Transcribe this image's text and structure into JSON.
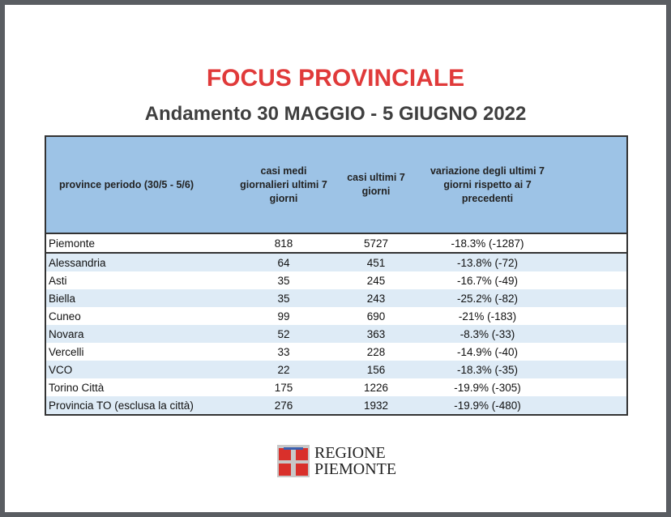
{
  "title": "FOCUS PROVINCIALE",
  "subtitle": "Andamento 30 MAGGIO - 5 GIUGNO 2022",
  "table": {
    "headers": [
      "province periodo (30/5 - 5/6)",
      "casi medi giornalieri ultimi 7 giorni",
      "casi ultimi 7 giorni",
      "variazione degli ultimi 7 giorni rispetto ai 7 precedenti"
    ],
    "rows": [
      [
        "Piemonte",
        "818",
        "5727",
        "-18.3% (-1287)"
      ],
      [
        "Alessandria",
        "64",
        "451",
        "-13.8% (-72)"
      ],
      [
        "Asti",
        "35",
        "245",
        "-16.7% (-49)"
      ],
      [
        "Biella",
        "35",
        "243",
        "-25.2% (-82)"
      ],
      [
        "Cuneo",
        "99",
        "690",
        "-21% (-183)"
      ],
      [
        "Novara",
        "52",
        "363",
        "-8.3% (-33)"
      ],
      [
        "Vercelli",
        "33",
        "228",
        "-14.9% (-40)"
      ],
      [
        "VCO",
        "22",
        "156",
        "-18.3% (-35)"
      ],
      [
        "Torino Città",
        "175",
        "1226",
        "-19.9% (-305)"
      ],
      [
        "Provincia TO (esclusa la città)",
        "276",
        "1932",
        "-19.9% (-480)"
      ]
    ]
  },
  "logo": {
    "line1": "REGIONE",
    "line2": "PIEMONTE"
  },
  "colors": {
    "title": "#e03a3a",
    "header_bg": "#9dc3e6",
    "alt_row": "#deebf6"
  }
}
